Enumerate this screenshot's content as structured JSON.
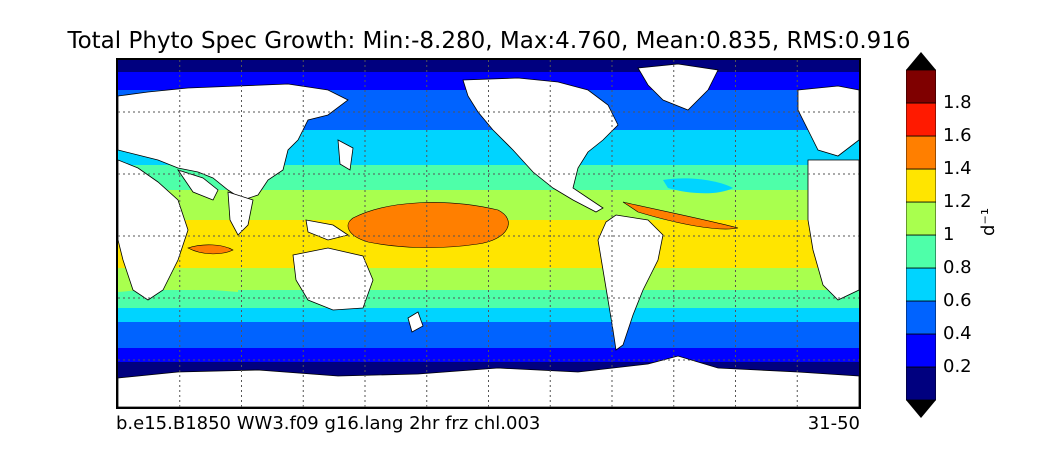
{
  "title": "Total Phyto Spec Growth: Min:-8.280, Max:4.760, Mean:0.835, RMS:0.916",
  "case_label": "b.e15.B1850 WW3.f09 g16.lang 2hr frz chl.003",
  "years_label": "31-50",
  "colorbar": {
    "unit": "d⁻¹",
    "ticks": [
      "0.2",
      "0.4",
      "0.6",
      "0.8",
      "1",
      "1.2",
      "1.4",
      "1.6",
      "1.8"
    ],
    "levels": [
      {
        "range": "<0.2",
        "color": "#00007f"
      },
      {
        "range": "0.2-0.4",
        "color": "#0000ff"
      },
      {
        "range": "0.4-0.6",
        "color": "#0063ff"
      },
      {
        "range": "0.6-0.8",
        "color": "#00d4ff"
      },
      {
        "range": "0.8-1",
        "color": "#4effa9"
      },
      {
        "range": "1-1.2",
        "color": "#a9ff4e"
      },
      {
        "range": "1.2-1.4",
        "color": "#ffe500"
      },
      {
        "range": "1.4-1.6",
        "color": "#ff7f00"
      },
      {
        "range": "1.6-1.8",
        "color": "#ff1a00"
      },
      {
        "range": ">1.8",
        "color": "#7f0000"
      }
    ],
    "extend": "both"
  },
  "map": {
    "projection": "cylindrical equidistant",
    "land_color": "#ffffff",
    "gridlines": "dotted, every 30°",
    "lon_range": [
      20,
      380
    ],
    "lat_range": [
      -80,
      90
    ]
  }
}
